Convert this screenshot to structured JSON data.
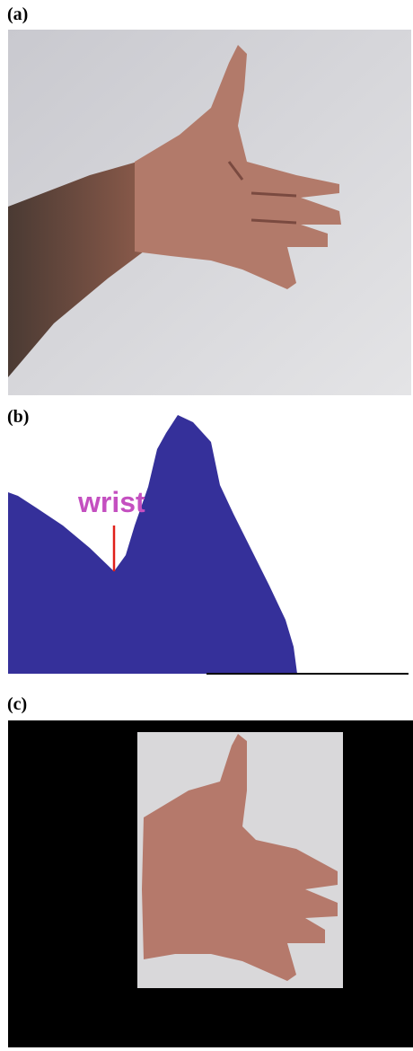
{
  "panels": [
    {
      "label": "(a)"
    },
    {
      "label": "(b)",
      "annotation": "wrist"
    },
    {
      "label": "(c)"
    }
  ]
}
